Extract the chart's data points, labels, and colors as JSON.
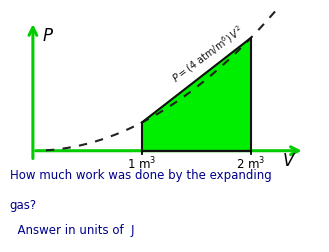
{
  "bg_color": "#ffffff",
  "axis_color": "#00cc00",
  "curve_color": "#222222",
  "fill_color": "#00ee00",
  "fill_edge_color": "#111111",
  "P_label": "$P$",
  "V_label": "$V$",
  "x_tick1": 1,
  "x_tick2": 2,
  "x_tick1_label": "1 m$^3$",
  "x_tick2_label": "2 m$^3$",
  "question_line1": "How much work was done by the expanding",
  "question_line2": "gas?",
  "question_line3": "  Answer in units of  J",
  "question_color": "#00008b",
  "xlim": [
    0,
    2.6
  ],
  "ylim": [
    -1.5,
    20
  ],
  "curve_extend_x": 2.25,
  "fill_x1": 1.0,
  "fill_x2": 2.0,
  "coeff": 4,
  "figsize": [
    3.29,
    2.52
  ],
  "dpi": 100
}
